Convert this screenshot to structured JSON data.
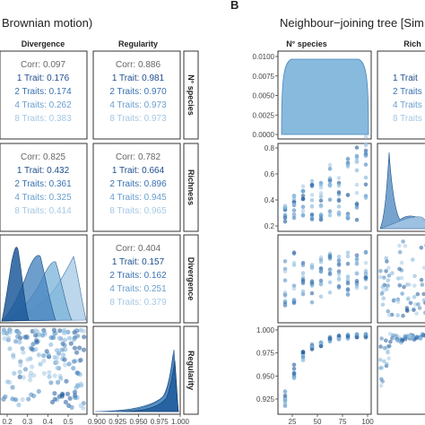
{
  "figure": {
    "panels": [
      {
        "id": "A",
        "letter": "",
        "title": "Brownian motion)",
        "col_labels": [
          "Divergence",
          "Regularity"
        ],
        "row_labels": [
          "N° species",
          "Richness",
          "Divergence",
          "Regularity"
        ]
      },
      {
        "id": "B",
        "letter": "B",
        "title": "Neighbour−joining tree [Sim",
        "col_labels": [
          "N° species",
          "Rich"
        ],
        "row_labels": []
      }
    ],
    "trait_labels": [
      "1 Trait",
      "2 Traits",
      "4 Traits",
      "8 Traits"
    ],
    "corr_label": "Corr",
    "colors": {
      "corr_all": "#666666",
      "trait_1": "#1f4e8c",
      "trait_2": "#3a72b0",
      "trait_4": "#6a9fcd",
      "trait_8": "#a6c8e4",
      "fill_light": "#7ab3d9",
      "fill_mid": "#4a86bf",
      "fill_dark": "#1f5a9a"
    }
  },
  "chart_data": [
    {
      "type": "table",
      "panel": "A",
      "row": "N° species",
      "col": "Divergence",
      "values": [
        "0.097",
        "0.176",
        "0.174",
        "0.262",
        "0.383"
      ]
    },
    {
      "type": "table",
      "panel": "A",
      "row": "N° species",
      "col": "Regularity",
      "values": [
        "0.886",
        "0.981",
        "0.970",
        "0.973",
        "0.973"
      ]
    },
    {
      "type": "table",
      "panel": "A",
      "row": "Richness",
      "col": "Divergence",
      "values": [
        "0.825",
        "0.432",
        "0.361",
        "0.325",
        "0.414"
      ]
    },
    {
      "type": "table",
      "panel": "A",
      "row": "Richness",
      "col": "Regularity",
      "values": [
        "0.782",
        "0.664",
        "0.896",
        "0.945",
        "0.965"
      ]
    },
    {
      "type": "table",
      "panel": "A",
      "row": "Divergence",
      "col": "Regularity",
      "values": [
        "0.404",
        "0.157",
        "0.162",
        "0.251",
        "0.379"
      ]
    },
    {
      "type": "table",
      "panel": "B",
      "row": "1",
      "col": "Rich",
      "values": [
        "1 Trait",
        "2 Traits",
        "4 Traits",
        "8 Traits"
      ]
    },
    {
      "type": "area",
      "panel": "B",
      "row": "N° species",
      "col": "N° species",
      "yticks": [
        "0.0100",
        "0.0075",
        "0.0050",
        "0.0025",
        "0.0000"
      ],
      "ylim": [
        0,
        0.0105
      ]
    },
    {
      "type": "scatter",
      "panel": "B",
      "row": "Divergence",
      "col": "N° species",
      "yticks": [
        "0.8",
        "0.6",
        "0.4",
        "0.2"
      ]
    },
    {
      "type": "scatter",
      "panel": "B",
      "row": "Regularity",
      "col": "N° species",
      "yticks": [
        "1.000",
        "0.975",
        "0.950",
        "0.925"
      ],
      "xticks": [
        "25",
        "50",
        "75",
        "100"
      ]
    },
    {
      "type": "area",
      "panel": "A",
      "row": "Regularity",
      "col": "Regularity",
      "xticks": [
        "0.900",
        "0.925",
        "0.950",
        "0.975",
        "1.000"
      ]
    },
    {
      "type": "scatter",
      "panel": "A",
      "row": "Regularity",
      "col": "Divergence",
      "xticks": [
        "0.2",
        "0.3",
        "0.4",
        "0.5"
      ]
    }
  ]
}
